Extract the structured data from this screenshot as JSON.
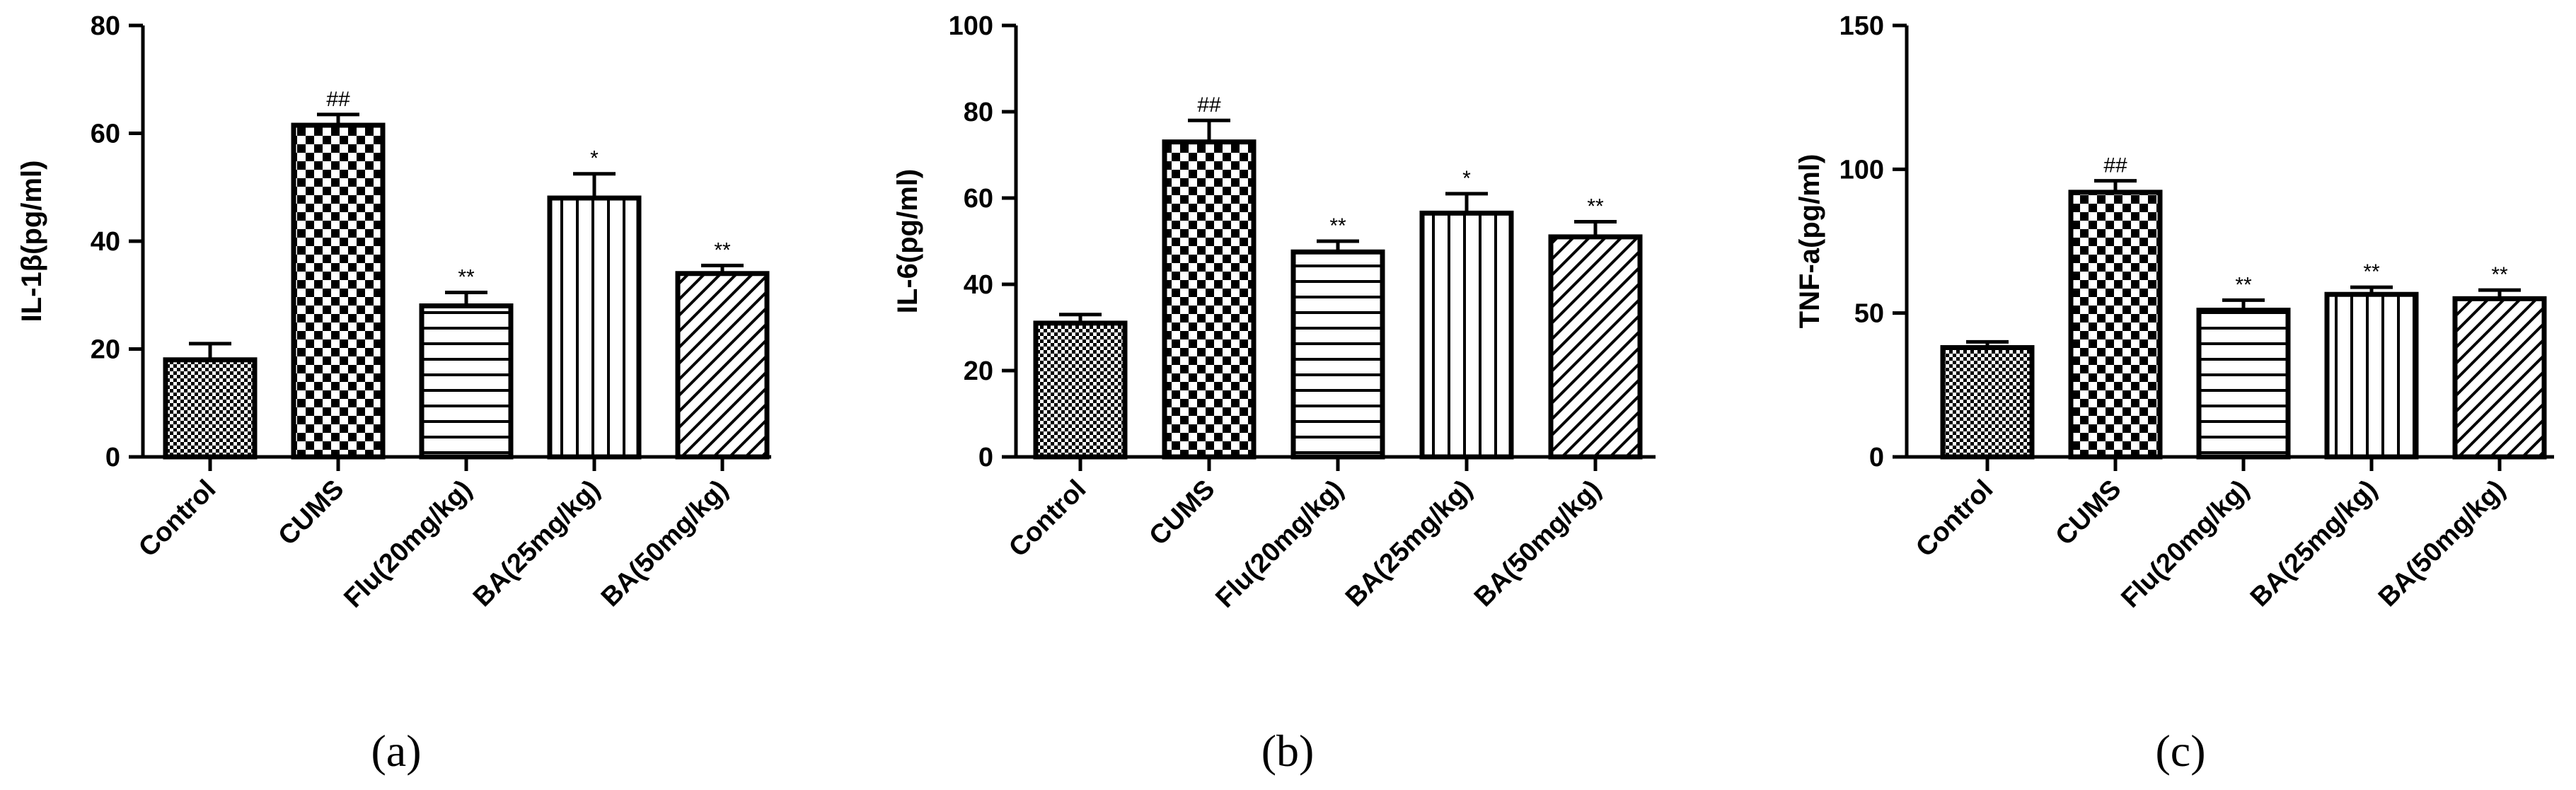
{
  "chart_data": [
    {
      "type": "bar",
      "panel_label": "(a)",
      "ylabel": "IL-1β(pg/ml)",
      "ylim": [
        0,
        80
      ],
      "yticks": [
        0,
        20,
        40,
        60,
        80
      ],
      "categories": [
        "Control",
        "CUMS",
        "Flu(20mg/kg)",
        "BA(25mg/kg)",
        "BA(50mg/kg)"
      ],
      "values": [
        18,
        61.5,
        28,
        48,
        34
      ],
      "errors": [
        3,
        2,
        2.5,
        4.5,
        1.5
      ],
      "significance": [
        "",
        "##",
        "**",
        "*",
        "**"
      ],
      "patterns": [
        "checker-small",
        "checker-large",
        "horizontal",
        "vertical",
        "diagonal"
      ]
    },
    {
      "type": "bar",
      "panel_label": "(b)",
      "ylabel": "IL-6(pg/ml)",
      "ylim": [
        0,
        100
      ],
      "yticks": [
        0,
        20,
        40,
        60,
        80,
        100
      ],
      "categories": [
        "Control",
        "CUMS",
        "Flu(20mg/kg)",
        "BA(25mg/kg)",
        "BA(50mg/kg)"
      ],
      "values": [
        31,
        73,
        47.5,
        56.5,
        51
      ],
      "errors": [
        2,
        5,
        2.5,
        4.5,
        3.5
      ],
      "significance": [
        "",
        "##",
        "**",
        "*",
        "**"
      ],
      "patterns": [
        "checker-small",
        "checker-large",
        "horizontal",
        "vertical",
        "diagonal"
      ]
    },
    {
      "type": "bar",
      "panel_label": "(c)",
      "ylabel": "TNF-a(pg/ml)",
      "ylim": [
        0,
        150
      ],
      "yticks": [
        0,
        50,
        100,
        150
      ],
      "categories": [
        "Control",
        "CUMS",
        "Flu(20mg/kg)",
        "BA(25mg/kg)",
        "BA(50mg/kg)"
      ],
      "values": [
        38,
        92,
        51,
        56.5,
        55
      ],
      "errors": [
        2,
        4,
        3.5,
        2.5,
        3
      ],
      "significance": [
        "",
        "##",
        "**",
        "**",
        "**"
      ],
      "patterns": [
        "checker-small",
        "checker-large",
        "horizontal",
        "vertical",
        "diagonal"
      ]
    }
  ]
}
